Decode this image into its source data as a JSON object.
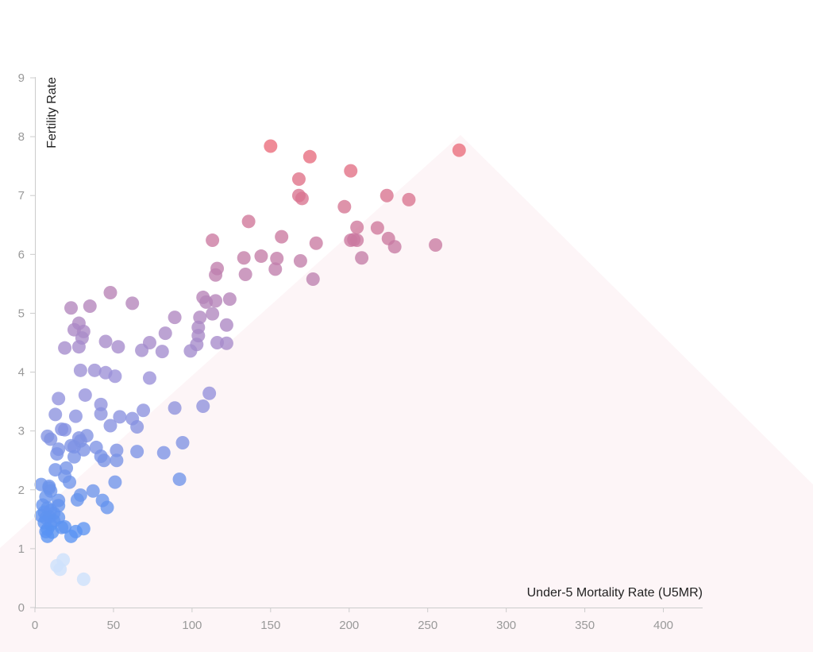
{
  "chart_data": {
    "type": "scatter",
    "title": "",
    "xlabel": "Under-5 Mortality Rate (U5MR)",
    "ylabel": "Fertility Rate",
    "xlim": [
      0,
      425
    ],
    "ylim": [
      0,
      9
    ],
    "x_ticks": [
      "0",
      "50",
      "100",
      "150",
      "200",
      "250",
      "300",
      "350",
      "400"
    ],
    "y_ticks": [
      "0",
      "1",
      "2",
      "3",
      "4",
      "5",
      "6",
      "7",
      "8",
      "9"
    ],
    "grid": false,
    "legend": "none",
    "color_scale": {
      "low": "#3a96ff",
      "mid": "#9a90d8",
      "high": "#ea6a7a"
    },
    "faded_color": "#cfe2fb",
    "background_shape_color": "#fdf5f7",
    "points": [
      [
        270,
        7.77
      ],
      [
        150,
        7.84
      ],
      [
        175,
        7.66
      ],
      [
        201,
        7.42
      ],
      [
        168,
        7.28
      ],
      [
        168,
        7.0
      ],
      [
        170,
        6.95
      ],
      [
        224,
        7.0
      ],
      [
        238,
        6.93
      ],
      [
        197,
        6.81
      ],
      [
        136,
        6.56
      ],
      [
        205,
        6.46
      ],
      [
        218,
        6.45
      ],
      [
        157,
        6.3
      ],
      [
        113,
        6.24
      ],
      [
        201,
        6.24
      ],
      [
        203,
        6.25
      ],
      [
        205,
        6.24
      ],
      [
        225,
        6.27
      ],
      [
        229,
        6.13
      ],
      [
        255,
        6.16
      ],
      [
        179,
        6.19
      ],
      [
        133,
        5.94
      ],
      [
        144,
        5.97
      ],
      [
        154,
        5.93
      ],
      [
        169,
        5.89
      ],
      [
        208,
        5.94
      ],
      [
        116,
        5.76
      ],
      [
        153,
        5.75
      ],
      [
        115,
        5.65
      ],
      [
        134,
        5.66
      ],
      [
        177,
        5.58
      ],
      [
        107,
        5.27
      ],
      [
        124,
        5.24
      ],
      [
        109,
        5.19
      ],
      [
        115,
        5.21
      ],
      [
        113,
        4.99
      ],
      [
        105,
        4.93
      ],
      [
        89,
        4.93
      ],
      [
        104,
        4.76
      ],
      [
        122,
        4.8
      ],
      [
        83,
        4.66
      ],
      [
        104,
        4.62
      ],
      [
        73,
        4.5
      ],
      [
        116,
        4.5
      ],
      [
        122,
        4.49
      ],
      [
        103,
        4.47
      ],
      [
        68,
        4.37
      ],
      [
        81,
        4.35
      ],
      [
        99,
        4.36
      ],
      [
        73,
        3.9
      ],
      [
        111,
        3.64
      ],
      [
        89,
        3.39
      ],
      [
        107,
        3.42
      ],
      [
        69,
        3.35
      ],
      [
        62,
        3.21
      ],
      [
        54,
        3.24
      ],
      [
        65,
        3.07
      ],
      [
        94,
        2.8
      ],
      [
        82,
        2.63
      ],
      [
        65,
        2.65
      ],
      [
        92,
        2.18
      ],
      [
        48,
        5.35
      ],
      [
        62,
        5.17
      ],
      [
        35,
        5.12
      ],
      [
        23,
        5.09
      ],
      [
        28,
        4.83
      ],
      [
        25,
        4.72
      ],
      [
        31,
        4.69
      ],
      [
        30,
        4.58
      ],
      [
        45,
        4.52
      ],
      [
        53,
        4.43
      ],
      [
        19,
        4.41
      ],
      [
        28,
        4.43
      ],
      [
        38,
        4.03
      ],
      [
        29,
        4.03
      ],
      [
        45,
        3.99
      ],
      [
        51,
        3.93
      ],
      [
        32,
        3.61
      ],
      [
        15,
        3.55
      ],
      [
        42,
        3.45
      ],
      [
        13,
        3.28
      ],
      [
        42,
        3.29
      ],
      [
        26,
        3.25
      ],
      [
        48,
        3.09
      ],
      [
        17,
        3.03
      ],
      [
        19,
        3.02
      ],
      [
        8,
        2.91
      ],
      [
        33,
        2.92
      ],
      [
        10,
        2.86
      ],
      [
        28,
        2.88
      ],
      [
        29,
        2.83
      ],
      [
        39,
        2.72
      ],
      [
        23,
        2.75
      ],
      [
        25,
        2.73
      ],
      [
        52,
        2.67
      ],
      [
        15,
        2.69
      ],
      [
        31,
        2.68
      ],
      [
        14,
        2.61
      ],
      [
        42,
        2.57
      ],
      [
        25,
        2.56
      ],
      [
        44,
        2.5
      ],
      [
        52,
        2.5
      ],
      [
        20,
        2.37
      ],
      [
        13,
        2.34
      ],
      [
        19,
        2.23
      ],
      [
        22,
        2.13
      ],
      [
        51,
        2.13
      ],
      [
        4,
        2.09
      ],
      [
        9,
        2.06
      ],
      [
        9,
        2.03
      ],
      [
        10,
        1.98
      ],
      [
        37,
        1.98
      ],
      [
        29,
        1.91
      ],
      [
        7,
        1.88
      ],
      [
        15,
        1.82
      ],
      [
        27,
        1.83
      ],
      [
        43,
        1.82
      ],
      [
        15,
        1.73
      ],
      [
        46,
        1.7
      ],
      [
        5,
        1.74
      ],
      [
        8,
        1.69
      ],
      [
        10,
        1.65
      ],
      [
        6,
        1.62
      ],
      [
        12,
        1.6
      ],
      [
        4,
        1.56
      ],
      [
        9,
        1.54
      ],
      [
        7,
        1.52
      ],
      [
        15,
        1.53
      ],
      [
        12,
        1.47
      ],
      [
        6,
        1.44
      ],
      [
        10,
        1.41
      ],
      [
        17,
        1.36
      ],
      [
        19,
        1.37
      ],
      [
        8,
        1.33
      ],
      [
        31,
        1.34
      ],
      [
        7,
        1.29
      ],
      [
        11,
        1.28
      ],
      [
        26,
        1.29
      ],
      [
        8,
        1.21
      ],
      [
        23,
        1.21
      ],
      [
        18,
        0.81
      ],
      [
        14,
        0.71
      ],
      [
        16,
        0.65
      ],
      [
        31,
        0.48
      ]
    ]
  }
}
